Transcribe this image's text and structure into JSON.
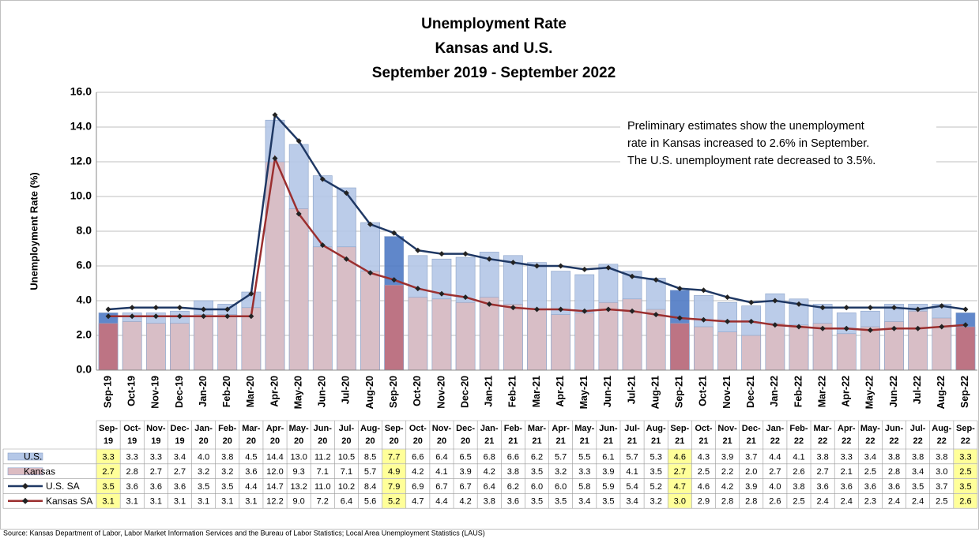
{
  "chart_data": {
    "type": "bar",
    "title": [
      "Unemployment Rate",
      "Kansas and U.S.",
      "September 2019 - September 2022"
    ],
    "ylabel": "Unemployment Rate (%)",
    "annotation": [
      "Preliminary estimates show the unemployment",
      "rate in Kansas increased to 2.6% in September.",
      "The U.S. unemployment rate decreased to 3.5%."
    ],
    "source": "Source: Kansas Department of Labor, Labor Market Information Services and the Bureau of Labor Statistics; Local Area Unemployment Statistics (LAUS)",
    "categories": [
      "Sep-19",
      "Oct-19",
      "Nov-19",
      "Dec-19",
      "Jan-20",
      "Feb-20",
      "Mar-20",
      "Apr-20",
      "May-20",
      "Jun-20",
      "Jul-20",
      "Aug-20",
      "Sep-20",
      "Oct-20",
      "Nov-20",
      "Dec-20",
      "Jan-21",
      "Feb-21",
      "Mar-21",
      "Apr-21",
      "May-21",
      "Jun-21",
      "Jul-21",
      "Aug-21",
      "Sep-21",
      "Oct-21",
      "Nov-21",
      "Dec-21",
      "Jan-22",
      "Feb-22",
      "Mar-22",
      "Apr-22",
      "May-22",
      "Jun-22",
      "Jul-22",
      "Aug-22",
      "Sep-22"
    ],
    "series": [
      {
        "name": "U.S.",
        "type": "bar",
        "color": "#b4c7e7",
        "highlight_color": "#4f7ac4",
        "values": [
          3.3,
          3.3,
          3.3,
          3.4,
          4.0,
          3.8,
          4.5,
          14.4,
          13.0,
          11.2,
          10.5,
          8.5,
          7.7,
          6.6,
          6.4,
          6.5,
          6.8,
          6.6,
          6.2,
          5.7,
          5.5,
          6.1,
          5.7,
          5.3,
          4.6,
          4.3,
          3.9,
          3.7,
          4.4,
          4.1,
          3.8,
          3.3,
          3.4,
          3.8,
          3.8,
          3.8,
          3.3
        ],
        "value_labels": [
          "3.3",
          "3.3",
          "3.3",
          "3.4",
          "4.0",
          "3.8",
          "4.5",
          "14.4",
          "13.0",
          "11.2",
          "10.5",
          "8.5",
          "7.7",
          "6.6",
          "6.4",
          "6.5",
          "6.8",
          "6.6",
          "6.2",
          "5.7",
          "5.5",
          "6.1",
          "5.7",
          "5.3",
          "4.6",
          "4.3",
          "3.9",
          "3.7",
          "4.4",
          "4.1",
          "3.8",
          "3.3",
          "3.4",
          "3.8",
          "3.8",
          "3.8",
          "3.3"
        ]
      },
      {
        "name": "Kansas",
        "type": "bar",
        "color": "#dcbcc2",
        "highlight_color": "#c8727c",
        "values": [
          2.7,
          2.8,
          2.7,
          2.7,
          3.2,
          3.2,
          3.6,
          12.0,
          9.3,
          7.1,
          7.1,
          5.7,
          4.9,
          4.2,
          4.1,
          3.9,
          4.2,
          3.8,
          3.5,
          3.2,
          3.3,
          3.9,
          4.1,
          3.5,
          2.7,
          2.5,
          2.2,
          2.0,
          2.7,
          2.6,
          2.7,
          2.1,
          2.5,
          2.8,
          3.4,
          3.0,
          2.5
        ],
        "value_labels": [
          "2.7",
          "2.8",
          "2.7",
          "2.7",
          "3.2",
          "3.2",
          "3.6",
          "12.0",
          "9.3",
          "7.1",
          "7.1",
          "5.7",
          "4.9",
          "4.2",
          "4.1",
          "3.9",
          "4.2",
          "3.8",
          "3.5",
          "3.2",
          "3.3",
          "3.9",
          "4.1",
          "3.5",
          "2.7",
          "2.5",
          "2.2",
          "2.0",
          "2.7",
          "2.6",
          "2.7",
          "2.1",
          "2.5",
          "2.8",
          "3.4",
          "3.0",
          "2.5"
        ]
      },
      {
        "name": "U.S. SA",
        "type": "line",
        "color": "#1f3864",
        "values": [
          3.5,
          3.6,
          3.6,
          3.6,
          3.5,
          3.5,
          4.4,
          14.7,
          13.2,
          11.0,
          10.2,
          8.4,
          7.9,
          6.9,
          6.7,
          6.7,
          6.4,
          6.2,
          6.0,
          6.0,
          5.8,
          5.9,
          5.4,
          5.2,
          4.7,
          4.6,
          4.2,
          3.9,
          4.0,
          3.8,
          3.6,
          3.6,
          3.6,
          3.6,
          3.5,
          3.7,
          3.5
        ],
        "value_labels": [
          "3.5",
          "3.6",
          "3.6",
          "3.6",
          "3.5",
          "3.5",
          "4.4",
          "14.7",
          "13.2",
          "11.0",
          "10.2",
          "8.4",
          "7.9",
          "6.9",
          "6.7",
          "6.7",
          "6.4",
          "6.2",
          "6.0",
          "6.0",
          "5.8",
          "5.9",
          "5.4",
          "5.2",
          "4.7",
          "4.6",
          "4.2",
          "3.9",
          "4.0",
          "3.8",
          "3.6",
          "3.6",
          "3.6",
          "3.6",
          "3.5",
          "3.7",
          "3.5"
        ]
      },
      {
        "name": "Kansas SA",
        "type": "line",
        "color": "#9b2f2f",
        "values": [
          3.1,
          3.1,
          3.1,
          3.1,
          3.1,
          3.1,
          3.1,
          12.2,
          9.0,
          7.2,
          6.4,
          5.6,
          5.2,
          4.7,
          4.4,
          4.2,
          3.8,
          3.6,
          3.5,
          3.5,
          3.4,
          3.5,
          3.4,
          3.2,
          3.0,
          2.9,
          2.8,
          2.8,
          2.6,
          2.5,
          2.4,
          2.4,
          2.3,
          2.4,
          2.4,
          2.5,
          2.6
        ],
        "value_labels": [
          "3.1",
          "3.1",
          "3.1",
          "3.1",
          "3.1",
          "3.1",
          "3.1",
          "12.2",
          "9.0",
          "7.2",
          "6.4",
          "5.6",
          "5.2",
          "4.7",
          "4.4",
          "4.2",
          "3.8",
          "3.6",
          "3.5",
          "3.5",
          "3.4",
          "3.5",
          "3.4",
          "3.2",
          "3.0",
          "2.9",
          "2.8",
          "2.8",
          "2.6",
          "2.5",
          "2.4",
          "2.4",
          "2.3",
          "2.4",
          "2.4",
          "2.5",
          "2.6"
        ]
      }
    ],
    "ylim": [
      0,
      16
    ],
    "yticks": [
      {
        "value": 0,
        "label": "0.0"
      },
      {
        "value": 2,
        "label": "2.0"
      },
      {
        "value": 4,
        "label": "4.0"
      },
      {
        "value": 6,
        "label": "6.0"
      },
      {
        "value": 8,
        "label": "8.0"
      },
      {
        "value": 10,
        "label": "10.0"
      },
      {
        "value": 12,
        "label": "12.0"
      },
      {
        "value": 14,
        "label": "14.0"
      },
      {
        "value": 16,
        "label": "16.0"
      }
    ],
    "grid": true,
    "table_highlight_color": "#ffff99"
  }
}
